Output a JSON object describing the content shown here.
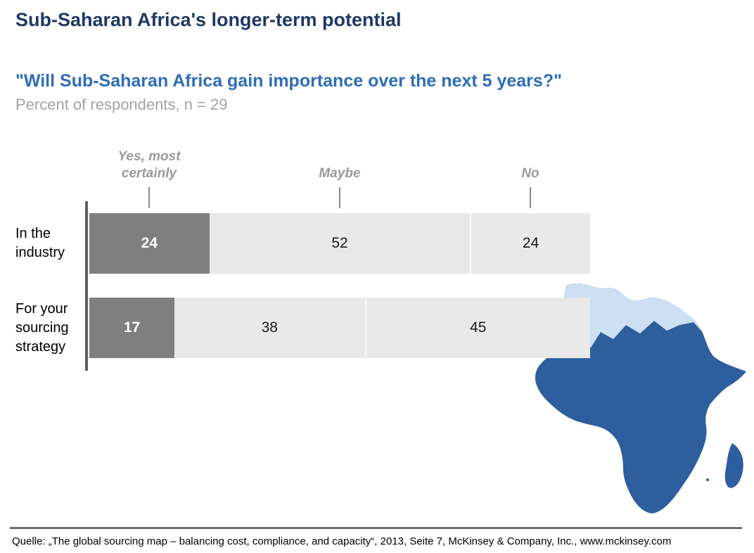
{
  "slide": {
    "title": "Sub-Saharan Africa's longer-term potential",
    "question": "\"Will Sub-Saharan Africa gain importance over the next 5 years?\"",
    "subtitle": "Percent of respondents, n = 29",
    "source": "Quelle: „The global sourcing map – balancing cost, compliance, and capacity“, 2013, Seite 7, McKinsey & Company, Inc., www.mckinsey.com"
  },
  "chart_data": {
    "type": "bar",
    "stacked": true,
    "orientation": "horizontal",
    "unit": "percent of respondents",
    "n": 29,
    "title": "\"Will Sub-Saharan Africa gain importance over the next 5 years?\"",
    "answer_options": [
      "Yes, most certainly",
      "Maybe",
      "No"
    ],
    "rows": [
      {
        "label": "In the industry",
        "values": [
          24,
          52,
          24
        ]
      },
      {
        "label": "For your sourcing strategy",
        "values": [
          17,
          38,
          45
        ]
      }
    ],
    "xlim": [
      0,
      100
    ],
    "legend_position": "above-bars-with-ticks",
    "grid": false,
    "colors": {
      "yes_segment": "#7f7f7f",
      "maybe_segment": "#e9e9e9",
      "no_segment": "#e9e9e9",
      "yes_label_text": "#ffffff",
      "other_label_text": "#1a1a1a"
    }
  },
  "map": {
    "description": "africa-map",
    "regions": [
      {
        "name": "North Africa",
        "color": "#cde0f3"
      },
      {
        "name": "Sub-Saharan Africa (incl. Madagascar)",
        "color": "#2d5f9e"
      }
    ]
  },
  "theme": {
    "title_color": "#1f3864",
    "question_color": "#2e6db6",
    "subtitle_color": "#a3a3a3",
    "header_label_color": "#9a9a9a",
    "axis_color": "#616161"
  }
}
